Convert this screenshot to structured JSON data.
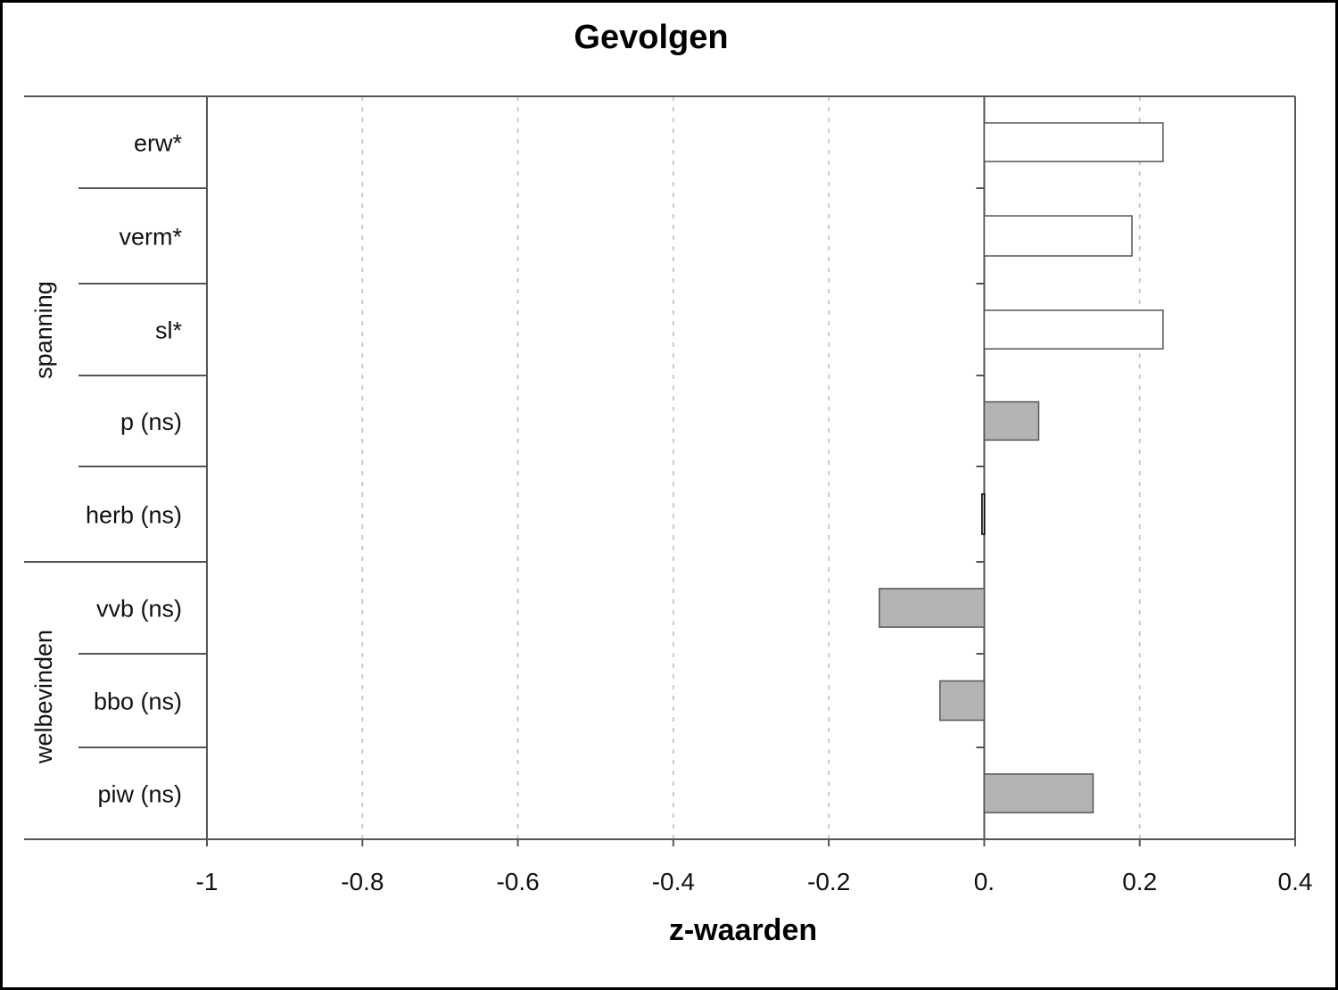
{
  "chart_data": {
    "type": "bar",
    "orientation": "horizontal",
    "title": "Gevolgen",
    "xlabel": "z-waarden",
    "ylabel": "",
    "xlim": [
      -1,
      0.4
    ],
    "x_ticks": [
      -1,
      -0.8,
      -0.6,
      -0.4,
      -0.2,
      0,
      0.2,
      0.4
    ],
    "x_tick_labels": [
      "-1",
      "-0.8",
      "-0.6",
      "-0.4",
      "-0.2",
      "0.",
      "0.2",
      "0.4"
    ],
    "grid": "vertical dashed",
    "categories": [
      "erw*",
      "verm*",
      "sl*",
      "p (ns)",
      "herb (ns)",
      "vvb (ns)",
      "bbo (ns)",
      "piw (ns)"
    ],
    "values": [
      0.23,
      0.19,
      0.23,
      0.07,
      -0.003,
      -0.135,
      -0.057,
      0.14
    ],
    "significant": [
      true,
      true,
      true,
      false,
      false,
      false,
      false,
      false
    ],
    "groups": [
      {
        "name": "spanning",
        "categories": [
          "erw*",
          "verm*",
          "sl*",
          "p (ns)",
          "herb (ns)"
        ]
      },
      {
        "name": "welbevinden",
        "categories": [
          "vvb (ns)",
          "bbo (ns)",
          "piw (ns)"
        ]
      }
    ],
    "colors": {
      "significant_fill": "#ffffff",
      "nonsignificant_fill": "#b3b3b3",
      "bar_stroke": "#555555",
      "axis": "#555555",
      "grid": "#bbbbbb"
    }
  }
}
